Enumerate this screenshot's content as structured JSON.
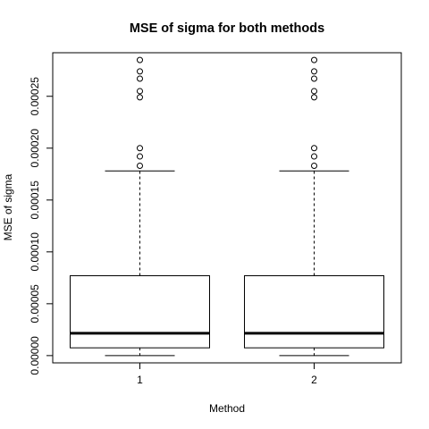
{
  "chart_data": {
    "type": "box",
    "title": "MSE of sigma for both methods",
    "xlabel": "Method",
    "ylabel": "MSE of sigma",
    "categories": [
      "1",
      "2"
    ],
    "ylim": [
      -7e-06,
      0.000292
    ],
    "yticks": [
      0,
      5e-05,
      0.0001,
      0.00015,
      0.0002,
      0.00025
    ],
    "ytick_labels": [
      "0.00000",
      "0.00005",
      "0.00010",
      "0.00015",
      "0.00020",
      "0.00025"
    ],
    "boxes": [
      {
        "name": "1",
        "min": 0.0,
        "q1": 7.5e-06,
        "median": 2.15e-05,
        "q3": 7.7e-05,
        "max": 0.000178,
        "outliers": [
          0.000183,
          0.000192,
          0.0002,
          0.000249,
          0.000255,
          0.000267,
          0.000274,
          0.000285
        ]
      },
      {
        "name": "2",
        "min": 0.0,
        "q1": 7.5e-06,
        "median": 2.15e-05,
        "q3": 7.7e-05,
        "max": 0.000178,
        "outliers": [
          0.000183,
          0.000192,
          0.0002,
          0.000249,
          0.000255,
          0.000267,
          0.000274,
          0.000285
        ]
      }
    ],
    "grid": false,
    "legend": "none"
  }
}
